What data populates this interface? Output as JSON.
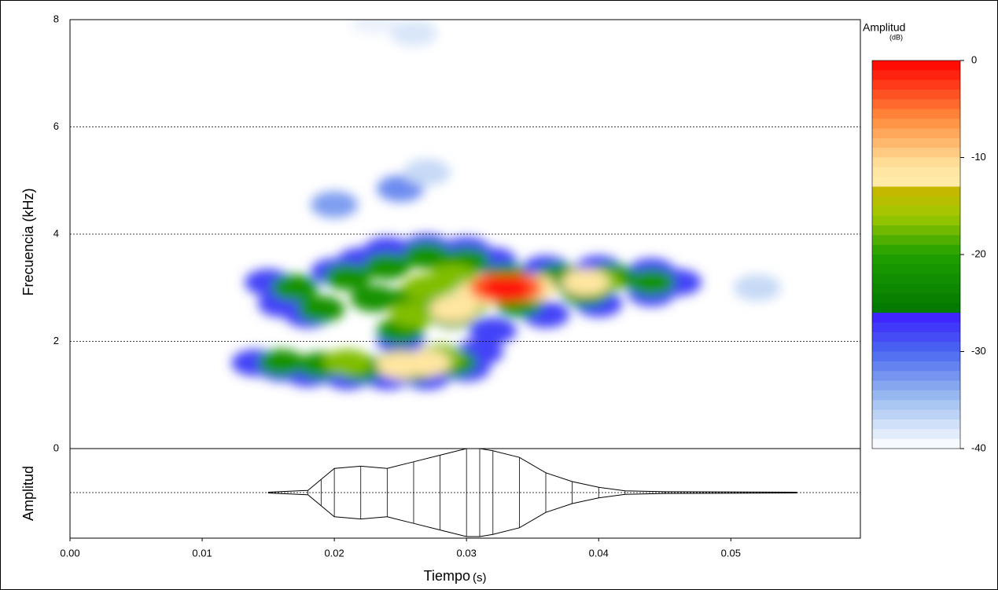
{
  "chart_data": {
    "type": "spectrogram",
    "x_label": "Tiempo",
    "x_unit": "(s)",
    "y_label": "Frecuencia (kHz)",
    "wave_label": "Amplitud",
    "colorbar_label": "Amplitud",
    "colorbar_unit": "(dB)",
    "xlim": [
      0,
      0.0598
    ],
    "xticks": [
      {
        "value": 0,
        "label": "0.00"
      },
      0.01,
      0.02,
      0.03,
      0.04,
      0.05
    ],
    "ylim": [
      0,
      8
    ],
    "yticks": [
      0,
      2,
      4,
      6,
      8
    ],
    "grid": true,
    "clim": [
      -40,
      0
    ],
    "cticks": [
      0,
      -10,
      -20,
      -30,
      -40
    ],
    "colormap": [
      {
        "value": 0,
        "color": "#ff0000"
      },
      {
        "value": -6,
        "color": "#ff8c3c"
      },
      {
        "value": -11,
        "color": "#ffe6a0"
      },
      {
        "value": -12.5,
        "color": "#ffeaa8"
      },
      {
        "value": -12.6,
        "color": "#d2b400"
      },
      {
        "value": -16,
        "color": "#a0c800"
      },
      {
        "value": -20,
        "color": "#20a000"
      },
      {
        "value": -25.9,
        "color": "#007800"
      },
      {
        "value": -26,
        "color": "#3c1cff"
      },
      {
        "value": -30,
        "color": "#4a68f0"
      },
      {
        "value": -35,
        "color": "#a0c0f0"
      },
      {
        "value": -40,
        "color": "#ffffff"
      }
    ],
    "spectrogram": {
      "time": [
        0.02,
        0.025,
        0.027,
        0.026,
        0.023,
        0.052,
        0.014,
        0.016,
        0.018,
        0.021,
        0.024,
        0.027,
        0.03,
        0.031,
        0.015,
        0.016,
        0.018,
        0.02,
        0.022,
        0.024,
        0.027,
        0.03,
        0.032,
        0.036,
        0.04,
        0.044,
        0.046,
        0.044,
        0.04,
        0.036,
        0.032,
        0.025,
        0.016,
        0.019,
        0.022,
        0.026,
        0.029,
        0.017,
        0.019,
        0.021,
        0.024,
        0.027,
        0.03,
        0.033,
        0.037,
        0.041,
        0.044,
        0.025,
        0.023,
        0.026,
        0.029,
        0.034,
        0.039,
        0.021,
        0.025,
        0.028,
        0.027,
        0.029,
        0.026,
        0.03,
        0.035,
        0.04,
        0.025,
        0.027,
        0.029,
        0.031,
        0.035,
        0.039,
        0.032,
        0.034,
        0.033
      ],
      "freq": [
        4.55,
        4.85,
        5.15,
        7.75,
        7.97,
        3.0,
        1.6,
        1.5,
        1.4,
        1.35,
        1.35,
        1.35,
        1.5,
        1.8,
        3.1,
        2.7,
        2.5,
        3.3,
        3.5,
        3.7,
        3.75,
        3.7,
        3.5,
        3.35,
        3.35,
        3.3,
        3.1,
        2.9,
        2.7,
        2.5,
        2.2,
        2.0,
        1.6,
        1.55,
        1.5,
        1.5,
        1.6,
        3.0,
        2.6,
        3.2,
        3.4,
        3.6,
        3.5,
        3.2,
        3.2,
        3.2,
        3.1,
        2.2,
        2.8,
        2.8,
        2.5,
        2.7,
        2.9,
        1.6,
        1.6,
        1.7,
        3.0,
        3.2,
        2.5,
        2.7,
        3.0,
        3.1,
        1.55,
        1.6,
        2.6,
        2.9,
        3.0,
        3.1,
        3.0,
        3.0,
        2.98
      ],
      "amplitude_db": [
        -33,
        -32,
        -37,
        -38,
        -39,
        -37,
        -28,
        -28,
        -28,
        -28,
        -28,
        -28,
        -28,
        -28,
        -28,
        -28,
        -28,
        -28,
        -28,
        -28,
        -28,
        -28,
        -28,
        -28,
        -28,
        -28,
        -28,
        -28,
        -28,
        -28,
        -28,
        -28,
        -22,
        -22,
        -22,
        -22,
        -22,
        -22,
        -22,
        -22,
        -22,
        -22,
        -22,
        -22,
        -22,
        -22,
        -22,
        -22,
        -22,
        -22,
        -22,
        -22,
        -22,
        -17,
        -17,
        -17,
        -17,
        -17,
        -17,
        -17,
        -17,
        -17,
        -11,
        -11,
        -11,
        -11,
        -11,
        -11,
        -4,
        -4,
        -1
      ]
    },
    "waveform": {
      "x": [
        0.015,
        0.018,
        0.019,
        0.02,
        0.022,
        0.024,
        0.026,
        0.028,
        0.03,
        0.031,
        0.032,
        0.034,
        0.036,
        0.038,
        0.04,
        0.042,
        0.045,
        0.055
      ],
      "envelope": [
        0.01,
        0.05,
        0.3,
        0.55,
        0.6,
        0.55,
        0.7,
        0.85,
        1,
        1,
        0.95,
        0.8,
        0.45,
        0.25,
        0.12,
        0.04,
        0.02,
        0.01
      ]
    }
  }
}
